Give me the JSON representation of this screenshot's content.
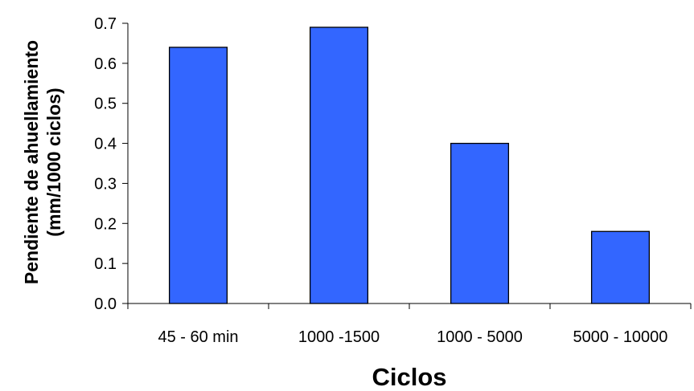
{
  "chart_data": {
    "type": "bar",
    "title": "",
    "xlabel": "Ciclos",
    "ylabel_lines": [
      "Pendiente de ahuellamiento",
      "(mm/1000 ciclos)"
    ],
    "categories": [
      "45 - 60 min",
      "1000 -1500",
      "1000 - 5000",
      "5000 - 10000"
    ],
    "values": [
      0.64,
      0.69,
      0.4,
      0.18
    ],
    "ylim": [
      0,
      0.7
    ],
    "yticks": [
      0.0,
      0.1,
      0.2,
      0.3,
      0.4,
      0.5,
      0.6,
      0.7
    ],
    "ytick_labels": [
      "0.0",
      "0.1",
      "0.2",
      "0.3",
      "0.4",
      "0.5",
      "0.6",
      "0.7"
    ],
    "grid": false,
    "legend": "none",
    "colors": {
      "bar_fill": "#3366FF",
      "bar_stroke": "#000000",
      "axis": "#000000"
    }
  }
}
